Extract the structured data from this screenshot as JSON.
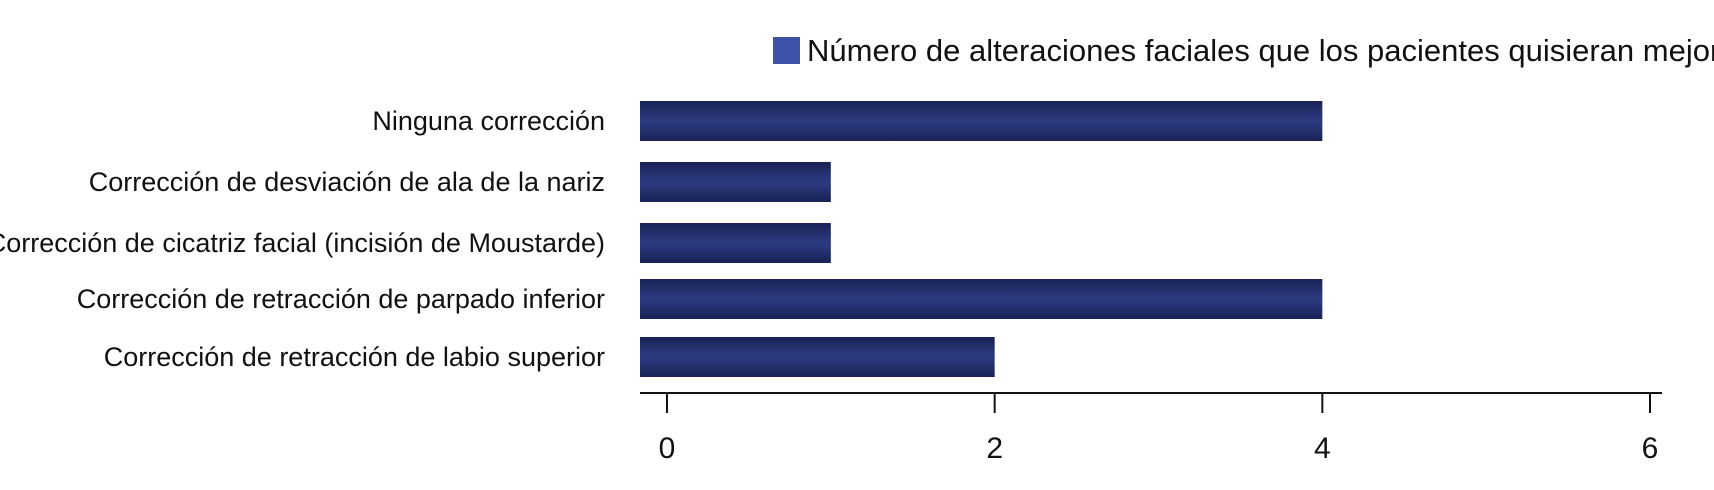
{
  "chart_data": {
    "type": "bar",
    "orientation": "horizontal",
    "categories": [
      "Ninguna corrección",
      "Corrección de desviación de ala de la nariz",
      "Corrección de cicatriz facial (incisión de Moustarde)",
      "Corrección de retracción de parpado inferior",
      "Corrección de retracción de labio superior"
    ],
    "series": [
      {
        "name": "Número de alteraciones faciales que los pacientes quisieran mejorar",
        "values": [
          4,
          1,
          1,
          4,
          2
        ]
      }
    ],
    "xlim": [
      0,
      6
    ],
    "xticks": [
      "0",
      "2",
      "4",
      "6"
    ],
    "legend_position": "top-right",
    "grid": false,
    "colors": {
      "bar_dark": "#1b2354",
      "bar_mid": "#2c3a82",
      "legend_swatch": "#3f54a8",
      "axis": "#111111"
    }
  }
}
